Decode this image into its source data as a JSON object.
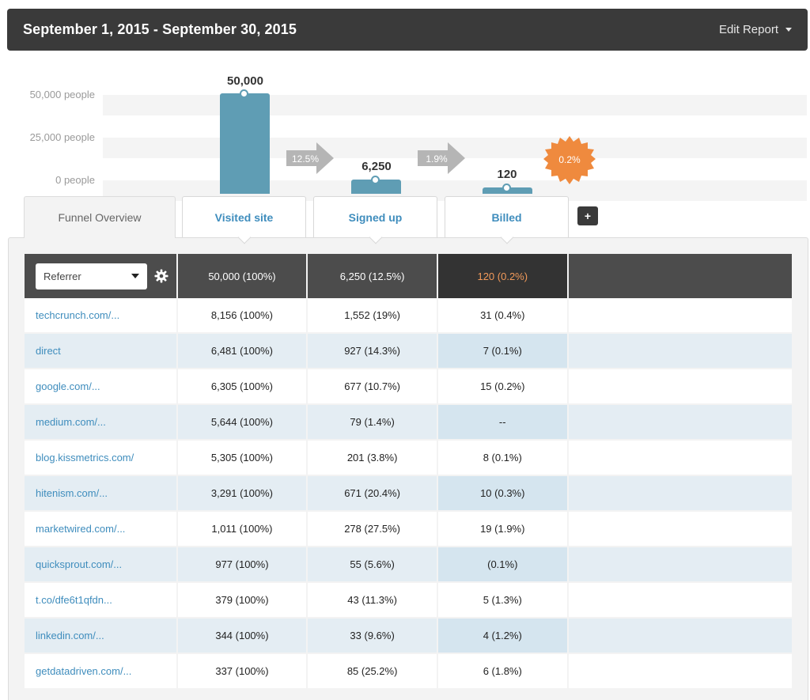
{
  "header": {
    "date_range": "September 1, 2015 - September 30, 2015",
    "edit_report_label": "Edit Report"
  },
  "chart": {
    "y_ticks": [
      "50,000 people",
      "25,000 people",
      "0 people"
    ],
    "bars": [
      {
        "label": "50,000",
        "value": 50000
      },
      {
        "label": "6,250",
        "value": 6250
      },
      {
        "label": "120",
        "value": 120
      }
    ],
    "conversion_arrows": [
      "12.5%",
      "1.9%"
    ],
    "overall_badge": "0.2%",
    "colors": {
      "bar": "#5f9db4",
      "arrow": "#b5b5b5",
      "badge": "#ef8a3e"
    }
  },
  "tabs": {
    "overview": "Funnel Overview",
    "steps": [
      "Visited site",
      "Signed up",
      "Billed"
    ],
    "add_label": "+"
  },
  "table": {
    "group_by": "Referrer",
    "totals": [
      "50,000 (100%)",
      "6,250 (12.5%)",
      "120 (0.2%)"
    ],
    "rows": [
      {
        "referrer": "techcrunch.com/...",
        "visited": "8,156 (100%)",
        "signed": "1,552 (19%)",
        "billed": "31 (0.4%)"
      },
      {
        "referrer": "direct",
        "visited": "6,481 (100%)",
        "signed": "927 (14.3%)",
        "billed": "7 (0.1%)"
      },
      {
        "referrer": "google.com/...",
        "visited": "6,305 (100%)",
        "signed": "677 (10.7%)",
        "billed": "15 (0.2%)"
      },
      {
        "referrer": "medium.com/...",
        "visited": "5,644 (100%)",
        "signed": "79 (1.4%)",
        "billed": "--"
      },
      {
        "referrer": "blog.kissmetrics.com/",
        "visited": "5,305 (100%)",
        "signed": "201 (3.8%)",
        "billed": "8 (0.1%)"
      },
      {
        "referrer": "hitenism.com/...",
        "visited": "3,291 (100%)",
        "signed": "671 (20.4%)",
        "billed": "10 (0.3%)"
      },
      {
        "referrer": "marketwired.com/...",
        "visited": "1,011 (100%)",
        "signed": "278 (27.5%)",
        "billed": "19 (1.9%)"
      },
      {
        "referrer": "quicksprout.com/...",
        "visited": "977 (100%)",
        "signed": "55 (5.6%)",
        "billed": "(0.1%)"
      },
      {
        "referrer": "t.co/dfe6t1qfdn...",
        "visited": "379 (100%)",
        "signed": "43 (11.3%)",
        "billed": "5 (1.3%)"
      },
      {
        "referrer": "linkedin.com/...",
        "visited": "344 (100%)",
        "signed": "33 (9.6%)",
        "billed": "4 (1.2%)"
      },
      {
        "referrer": "getdatadriven.com/...",
        "visited": "337 (100%)",
        "signed": "85 (25.2%)",
        "billed": "6 (1.8%)"
      }
    ]
  }
}
